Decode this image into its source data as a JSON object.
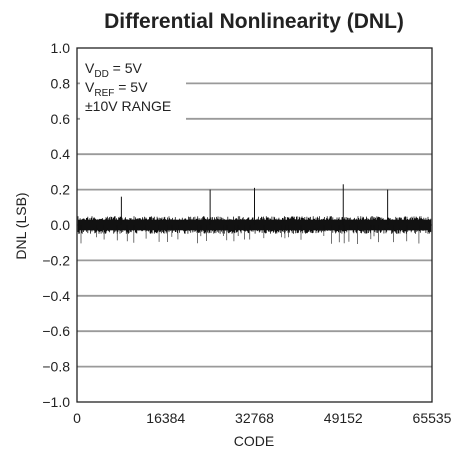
{
  "chart_data": {
    "type": "line",
    "title": "Differential Nonlinearity (DNL)",
    "xlabel": "CODE",
    "ylabel": "DNL (LSB)",
    "xlim": [
      0,
      65535
    ],
    "ylim": [
      -1.0,
      1.0
    ],
    "x_ticks": [
      0,
      16384,
      32768,
      49152,
      65535
    ],
    "x_tick_labels": [
      "0",
      "16384",
      "32768",
      "49152",
      "65535"
    ],
    "y_ticks": [
      1.0,
      0.8,
      0.6,
      0.4,
      0.2,
      0.0,
      -0.2,
      -0.4,
      -0.6,
      -0.8,
      -1.0
    ],
    "y_tick_labels": [
      "1.0",
      "0.8",
      "0.6",
      "0.4",
      "0.2",
      "0.0",
      "−0.2",
      "−0.4",
      "−0.6",
      "−0.8",
      "−1.0"
    ],
    "grid": "horizontal",
    "conditions": [
      {
        "main": "V",
        "sub": "DD",
        "rest": " = 5V"
      },
      {
        "main": "V",
        "sub": "REF",
        "rest": " = 5V"
      },
      {
        "main": "±10V RANGE",
        "sub": "",
        "rest": ""
      }
    ],
    "noise_band": {
      "low": -0.03,
      "high": 0.03
    },
    "positive_spikes": [
      {
        "x": 8192,
        "y": 0.16
      },
      {
        "x": 24576,
        "y": 0.2
      },
      {
        "x": 32768,
        "y": 0.21
      },
      {
        "x": 49152,
        "y": 0.23
      },
      {
        "x": 57344,
        "y": 0.2
      }
    ],
    "negative_spike_level": -0.1,
    "colors": {
      "trace": "#111111",
      "grid": "#9a9a9a",
      "frame": "#222222"
    }
  }
}
